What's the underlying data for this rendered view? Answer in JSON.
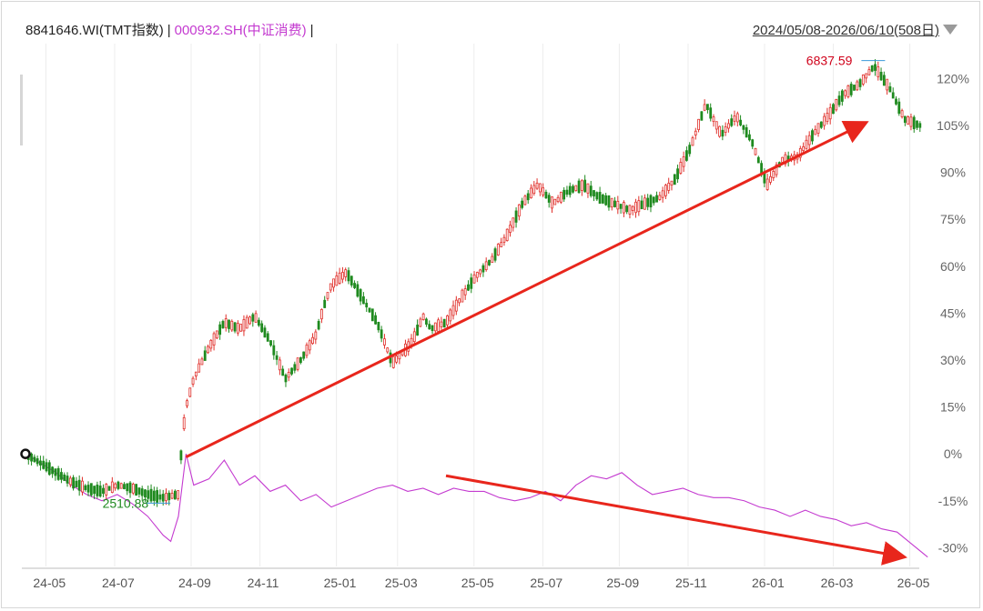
{
  "header": {
    "series1_label": "8841646.WI(TMT指数)",
    "separator": "|",
    "series2_label": "000932.SH(中证消费)",
    "separator2": "|",
    "date_range": "2024/05/08-2026/06/10(508日)"
  },
  "annotations": {
    "max_label": "6837.59",
    "min_label": "2510.88"
  },
  "colors": {
    "up": "#e0302b",
    "down": "#1f8a1f",
    "consumer": "#c43bd0",
    "arrow": "#e8261c",
    "max_text": "#d0021b",
    "min_text": "#1f8a1f",
    "marker": "#3a9ad9"
  },
  "chart_data": {
    "type": "line",
    "title": "",
    "y_unit": "%",
    "ylim": [
      -36,
      130
    ],
    "y_ticks": [
      "120%",
      "105%",
      "90%",
      "75%",
      "60%",
      "45%",
      "30%",
      "15%",
      "0%",
      "-15%",
      "-30%"
    ],
    "y_tick_values": [
      120,
      105,
      90,
      75,
      60,
      45,
      30,
      15,
      0,
      -15,
      -30
    ],
    "x_ticks": [
      "24-05",
      "24-07",
      "24-09",
      "24-11",
      "25-01",
      "25-03",
      "25-05",
      "25-07",
      "25-09",
      "25-11",
      "26-01",
      "26-03",
      "26-05"
    ],
    "x_tick_positions": [
      0.01,
      0.1,
      0.2,
      0.29,
      0.39,
      0.47,
      0.57,
      0.66,
      0.76,
      0.85,
      0.95,
      1.04,
      1.14
    ],
    "grid": "vertical",
    "series": [
      {
        "name": "8841646.WI(TMT指数)",
        "style": "candlestick",
        "x": [
          0,
          0.02,
          0.04,
          0.06,
          0.08,
          0.1,
          0.12,
          0.14,
          0.16,
          0.18,
          0.2,
          0.205,
          0.21,
          0.22,
          0.24,
          0.26,
          0.28,
          0.3,
          0.32,
          0.34,
          0.36,
          0.38,
          0.39,
          0.4,
          0.42,
          0.44,
          0.46,
          0.48,
          0.5,
          0.51,
          0.52,
          0.53,
          0.55,
          0.57,
          0.59,
          0.61,
          0.63,
          0.65,
          0.67,
          0.69,
          0.71,
          0.73,
          0.75,
          0.77,
          0.79,
          0.81,
          0.83,
          0.85,
          0.87,
          0.89,
          0.91,
          0.93,
          0.95,
          0.97,
          0.99,
          1.01,
          1.03,
          1.05,
          1.07,
          1.09,
          1.11,
          1.13,
          1.15,
          1.17
        ],
        "values": [
          0,
          -3,
          -6,
          -9,
          -11,
          -12,
          -10,
          -11,
          -13,
          -14,
          -13,
          5,
          15,
          24,
          34,
          42,
          40,
          44,
          36,
          24,
          30,
          38,
          47,
          54,
          58,
          50,
          42,
          29,
          34,
          38,
          44,
          40,
          42,
          50,
          57,
          62,
          70,
          80,
          86,
          80,
          84,
          86,
          82,
          80,
          78,
          80,
          82,
          88,
          98,
          112,
          102,
          108,
          100,
          86,
          94,
          95,
          102,
          108,
          115,
          118,
          124,
          117,
          107,
          105
        ]
      },
      {
        "name": "000932.SH(中证消费)",
        "style": "line",
        "x": [
          0,
          0.02,
          0.04,
          0.06,
          0.08,
          0.1,
          0.12,
          0.14,
          0.16,
          0.18,
          0.19,
          0.2,
          0.21,
          0.22,
          0.24,
          0.26,
          0.28,
          0.3,
          0.32,
          0.34,
          0.36,
          0.38,
          0.4,
          0.42,
          0.44,
          0.46,
          0.48,
          0.5,
          0.52,
          0.54,
          0.56,
          0.58,
          0.6,
          0.62,
          0.64,
          0.66,
          0.68,
          0.7,
          0.72,
          0.74,
          0.76,
          0.78,
          0.8,
          0.82,
          0.84,
          0.86,
          0.88,
          0.9,
          0.92,
          0.94,
          0.96,
          0.98,
          1.0,
          1.02,
          1.04,
          1.06,
          1.08,
          1.1,
          1.12,
          1.14,
          1.16,
          1.18
        ],
        "values": [
          0,
          -3,
          -6,
          -10,
          -13,
          -15,
          -13,
          -16,
          -20,
          -26,
          -28,
          -20,
          0,
          -10,
          -8,
          -2,
          -10,
          -7,
          -12,
          -10,
          -15,
          -13,
          -17,
          -15,
          -13,
          -11,
          -10,
          -12,
          -11,
          -13,
          -11,
          -12,
          -12,
          -14,
          -15,
          -14,
          -12,
          -15,
          -10,
          -7,
          -8,
          -6,
          -10,
          -13,
          -12,
          -11,
          -13,
          -14,
          -14,
          -15,
          -17,
          -18,
          -20,
          -18,
          -20,
          -21,
          -23,
          -22,
          -24,
          -25,
          -29,
          -33
        ]
      }
    ],
    "annotations": [
      {
        "text": "6837.59",
        "series": "8841646.WI(TMT指数)",
        "kind": "max",
        "x": 1.11,
        "y": 124
      },
      {
        "text": "2510.88",
        "series": "8841646.WI(TMT指数)",
        "kind": "min",
        "x": 0.18,
        "y": -14
      }
    ],
    "trend_arrows": [
      {
        "from": [
          0.21,
          -1
        ],
        "to": [
          1.1,
          106
        ],
        "color": "#e8261c"
      },
      {
        "from": [
          0.55,
          -7
        ],
        "to": [
          1.15,
          -33
        ],
        "color": "#e8261c"
      }
    ]
  }
}
